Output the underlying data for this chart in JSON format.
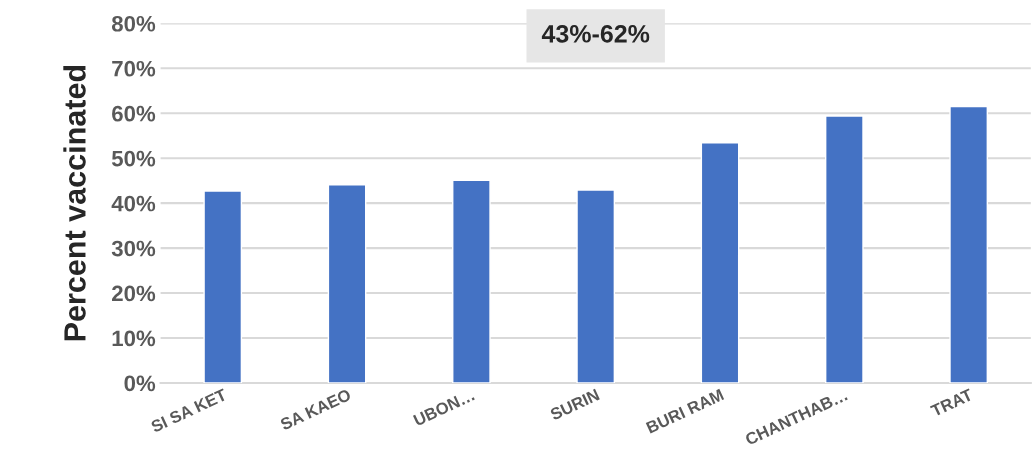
{
  "chart_data": {
    "type": "bar",
    "categories": [
      "SI SA KET",
      "SA KAEO",
      "UBON…",
      "SURIN",
      "BURI RAM",
      "CHANTHAB…",
      "TRAT"
    ],
    "values": [
      42.7,
      44.1,
      45.1,
      42.9,
      53.4,
      59.4,
      61.5
    ],
    "color": "#4472c4",
    "ylabel": "Percent vaccinated",
    "ylim": [
      0,
      80
    ],
    "yticks": [
      {
        "value": 0,
        "label": "0%"
      },
      {
        "value": 10,
        "label": "10%"
      },
      {
        "value": 20,
        "label": "20%"
      },
      {
        "value": 30,
        "label": "30%"
      },
      {
        "value": 40,
        "label": "40%"
      },
      {
        "value": 50,
        "label": "50%"
      },
      {
        "value": 60,
        "label": "60%"
      },
      {
        "value": 70,
        "label": "70%"
      },
      {
        "value": 80,
        "label": "80%"
      }
    ],
    "grid": "y",
    "annotations": [
      "43%-62%"
    ]
  }
}
